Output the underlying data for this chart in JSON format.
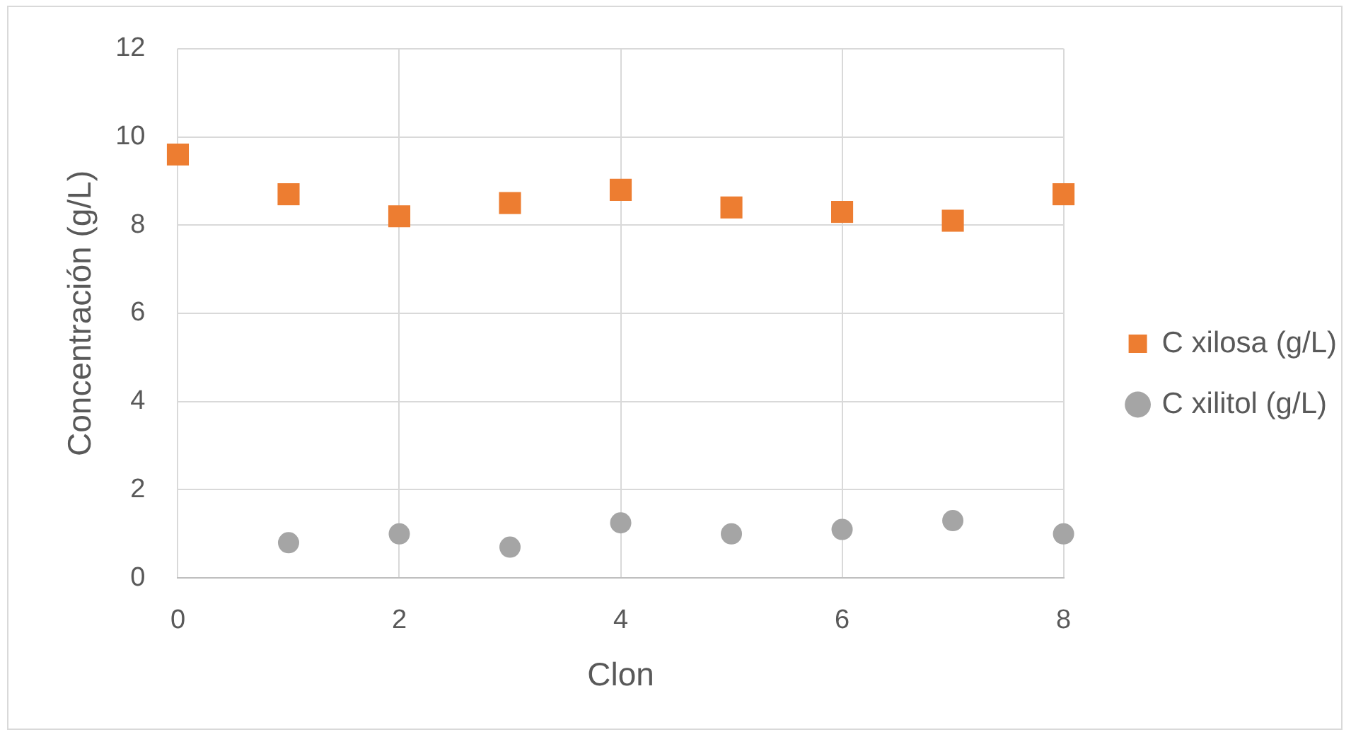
{
  "chart_data": {
    "type": "scatter",
    "xlabel": "Clon",
    "ylabel": "Concentración (g/L)",
    "x": [
      0,
      1,
      2,
      3,
      4,
      5,
      6,
      7,
      8
    ],
    "series": [
      {
        "name": "C xilosa (g/L)",
        "color": "#ed7d31",
        "marker": "square",
        "values": [
          9.6,
          8.7,
          8.2,
          8.5,
          8.8,
          8.4,
          8.3,
          8.1,
          8.7
        ]
      },
      {
        "name": "C xilitol (g/L)",
        "color": "#a5a5a5",
        "marker": "circle",
        "values": [
          null,
          0.8,
          1.0,
          0.7,
          1.25,
          1.0,
          1.1,
          1.3,
          1.0
        ]
      }
    ],
    "xlim": [
      0,
      8
    ],
    "xticks": [
      0,
      2,
      4,
      6,
      8
    ],
    "ylim": [
      0,
      12
    ],
    "yticks": [
      0,
      2,
      4,
      6,
      8,
      10,
      12
    ],
    "grid": true,
    "legend": "right"
  }
}
